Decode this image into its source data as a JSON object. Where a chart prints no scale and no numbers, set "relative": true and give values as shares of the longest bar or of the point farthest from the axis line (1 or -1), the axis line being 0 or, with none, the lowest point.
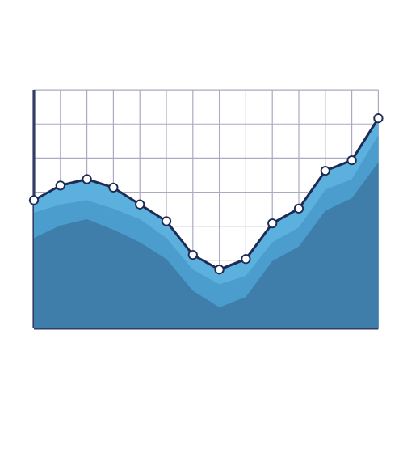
{
  "chart_data": {
    "type": "area",
    "relative": true,
    "grid": true,
    "categories": [
      null,
      null,
      null,
      null,
      null,
      null,
      null,
      null,
      null,
      null,
      null,
      null,
      null,
      null
    ],
    "series": [
      {
        "type": "area",
        "marker": "circle",
        "color": "#5bb0de",
        "values": [
          0.61,
          0.68,
          0.71,
          0.67,
          0.59,
          0.51,
          0.35,
          0.28,
          0.33,
          0.5,
          0.57,
          0.75,
          0.8,
          1
        ]
      },
      {
        "type": "area",
        "color": "#4a9dcc",
        "values": [
          0.55,
          0.59,
          0.61,
          0.57,
          0.52,
          0.43,
          0.28,
          0.21,
          0.25,
          0.41,
          0.48,
          0.66,
          0.71,
          0.92
        ]
      },
      {
        "color": "#3f7eab",
        "values": [
          0.43,
          0.49,
          0.52,
          0.47,
          0.41,
          0.33,
          0.18,
          0.1,
          0.15,
          0.32,
          0.39,
          0.56,
          0.62,
          0.79
        ]
      }
    ]
  }
}
